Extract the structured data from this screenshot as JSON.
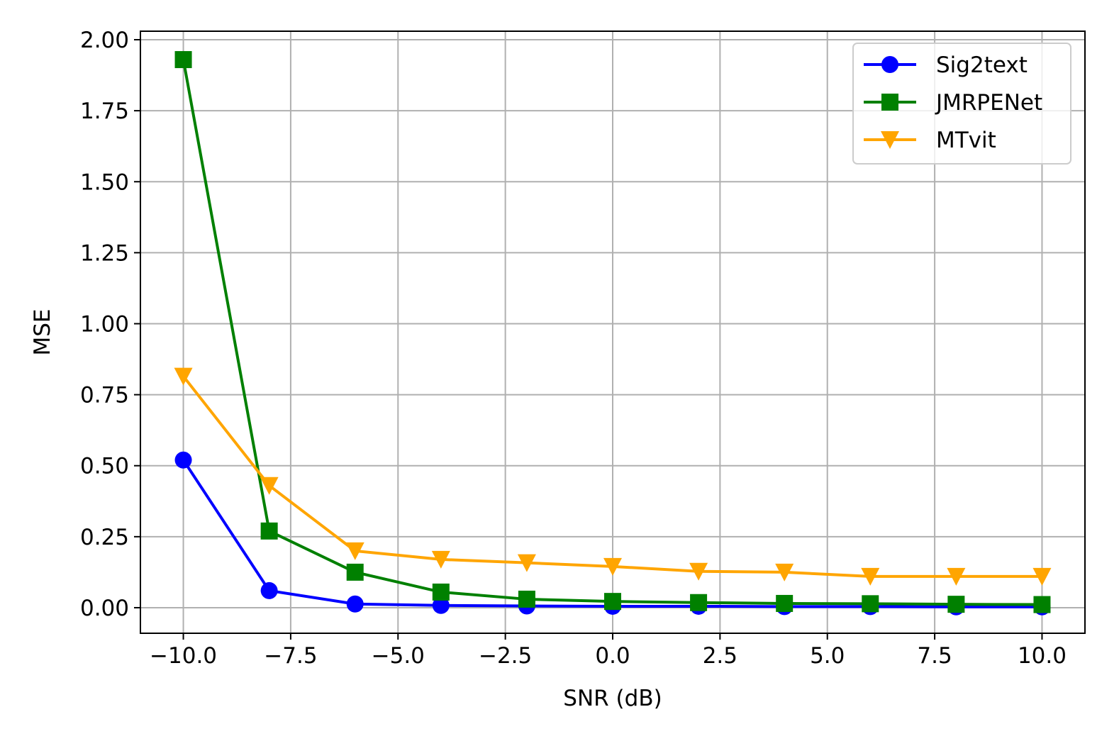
{
  "chart_data": {
    "type": "line",
    "title": "",
    "xlabel": "SNR (dB)",
    "ylabel": "MSE",
    "xlim": [
      -11,
      11
    ],
    "ylim": [
      -0.09,
      2.03
    ],
    "grid": true,
    "legend_position": "top-right",
    "x_ticks": [
      -10.0,
      -7.5,
      -5.0,
      -2.5,
      0.0,
      2.5,
      5.0,
      7.5,
      10.0
    ],
    "x_tick_labels": [
      "−10.0",
      "−7.5",
      "−5.0",
      "−2.5",
      "0.0",
      "2.5",
      "5.0",
      "7.5",
      "10.0"
    ],
    "y_ticks": [
      0.0,
      0.25,
      0.5,
      0.75,
      1.0,
      1.25,
      1.5,
      1.75,
      2.0
    ],
    "y_tick_labels": [
      "0.00",
      "0.25",
      "0.50",
      "0.75",
      "1.00",
      "1.25",
      "1.50",
      "1.75",
      "2.00"
    ],
    "x": [
      -10,
      -8,
      -6,
      -4,
      -2,
      0,
      2,
      4,
      6,
      8,
      10
    ],
    "series": [
      {
        "name": "Sig2text",
        "color": "#0000ff",
        "marker": "circle",
        "values": [
          0.52,
          0.06,
          0.013,
          0.008,
          0.006,
          0.005,
          0.005,
          0.004,
          0.004,
          0.003,
          0.003
        ]
      },
      {
        "name": "JMRPENet",
        "color": "#008000",
        "marker": "square",
        "values": [
          1.93,
          0.27,
          0.125,
          0.055,
          0.03,
          0.022,
          0.018,
          0.015,
          0.014,
          0.012,
          0.011
        ]
      },
      {
        "name": "MTvit",
        "color": "#ffa500",
        "marker": "triangle-down",
        "values": [
          0.815,
          0.43,
          0.2,
          0.17,
          0.158,
          0.145,
          0.128,
          0.125,
          0.11,
          0.11,
          0.11
        ]
      }
    ]
  }
}
